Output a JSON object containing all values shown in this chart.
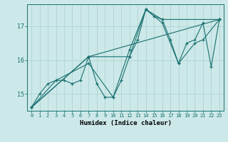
{
  "title": "",
  "xlabel": "Humidex (Indice chaleur)",
  "bg_color": "#cce8e8",
  "grid_color": "#b0d4d4",
  "line_color": "#1a7070",
  "xlim": [
    -0.5,
    23.5
  ],
  "ylim": [
    14.5,
    17.65
  ],
  "yticks": [
    15,
    16,
    17
  ],
  "xticks": [
    0,
    1,
    2,
    3,
    4,
    5,
    6,
    7,
    8,
    9,
    10,
    11,
    12,
    13,
    14,
    15,
    16,
    17,
    18,
    19,
    20,
    21,
    22,
    23
  ],
  "series": [
    {
      "x": [
        0,
        1,
        2,
        3,
        4,
        5,
        6,
        7,
        8,
        9,
        10,
        11,
        12,
        13,
        14,
        15,
        16,
        17,
        18,
        19,
        20,
        21,
        22,
        23
      ],
      "y": [
        14.6,
        15.0,
        15.3,
        15.4,
        15.4,
        15.3,
        15.4,
        16.1,
        15.3,
        14.9,
        14.9,
        15.4,
        16.1,
        16.6,
        17.5,
        17.3,
        17.2,
        16.6,
        15.9,
        16.5,
        16.6,
        17.1,
        15.8,
        17.2
      ]
    },
    {
      "x": [
        0,
        3,
        7,
        10,
        12,
        14,
        16,
        18,
        20,
        21,
        23
      ],
      "y": [
        14.6,
        15.4,
        15.9,
        14.9,
        16.3,
        17.5,
        17.1,
        15.9,
        16.5,
        16.6,
        17.2
      ]
    },
    {
      "x": [
        0,
        7,
        12,
        14,
        16,
        23
      ],
      "y": [
        14.6,
        16.1,
        16.1,
        17.5,
        17.2,
        17.2
      ]
    },
    {
      "x": [
        0,
        7,
        23
      ],
      "y": [
        14.6,
        16.1,
        17.2
      ]
    }
  ]
}
